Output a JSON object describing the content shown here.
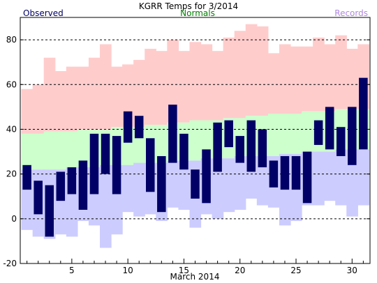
{
  "chart_data": {
    "type": "bar",
    "title": "KGRR Temps for 3/2014",
    "xlabel": "March 2014",
    "ylabel": "",
    "ylim": [
      -20,
      90
    ],
    "yticks": [
      -20,
      0,
      20,
      40,
      60,
      80
    ],
    "xticks": [
      5,
      10,
      15,
      20,
      25,
      30
    ],
    "days": [
      1,
      2,
      3,
      4,
      5,
      6,
      7,
      8,
      9,
      10,
      11,
      12,
      13,
      14,
      15,
      16,
      17,
      18,
      19,
      20,
      21,
      22,
      23,
      24,
      25,
      26,
      27,
      28,
      29,
      30,
      31
    ],
    "legend": {
      "observed": "Observed",
      "normals": "Normals",
      "records": "Records"
    },
    "colors": {
      "observed": "#000066",
      "normals_fill": "#ccffcc",
      "records_high_fill": "#ffcccc",
      "records_low_fill": "#ccccff",
      "observed_label": "#000066",
      "normals_label": "#008000",
      "records_label": "#b088e0"
    },
    "series": [
      {
        "name": "Record High",
        "values": [
          58,
          60,
          72,
          66,
          68,
          68,
          72,
          78,
          68,
          69,
          71,
          76,
          75,
          80,
          75,
          79,
          78,
          75,
          81,
          84,
          87,
          86,
          74,
          78,
          77,
          77,
          81,
          78,
          82,
          76,
          78
        ]
      },
      {
        "name": "Normal High",
        "values": [
          38,
          38,
          39,
          39,
          39,
          40,
          40,
          40,
          41,
          41,
          41,
          42,
          42,
          43,
          43,
          44,
          44,
          44,
          45,
          45,
          46,
          46,
          47,
          47,
          47,
          48,
          48,
          48,
          49,
          49,
          49
        ]
      },
      {
        "name": "Normal Low",
        "values": [
          22,
          22,
          22,
          22,
          23,
          23,
          23,
          24,
          24,
          24,
          25,
          25,
          25,
          26,
          26,
          26,
          27,
          27,
          27,
          28,
          28,
          28,
          28,
          29,
          29,
          30,
          30,
          30,
          31,
          31,
          31
        ]
      },
      {
        "name": "Record Low",
        "values": [
          -5,
          -8,
          -9,
          -7,
          -8,
          -1,
          -3,
          -13,
          -7,
          3,
          1,
          2,
          -1,
          5,
          4,
          -4,
          2,
          0,
          3,
          4,
          9,
          6,
          5,
          -3,
          -1,
          6,
          6,
          8,
          6,
          1,
          6
        ]
      },
      {
        "name": "Observed High",
        "values": [
          24,
          17,
          15,
          21,
          23,
          26,
          38,
          38,
          37,
          48,
          46,
          36,
          28,
          51,
          38,
          22,
          31,
          43,
          44,
          37,
          44,
          40,
          26,
          28,
          28,
          30,
          44,
          50,
          41,
          50,
          63
        ]
      },
      {
        "name": "Observed Low",
        "values": [
          13,
          2,
          -8,
          8,
          11,
          4,
          11,
          20,
          11,
          34,
          36,
          12,
          3,
          25,
          22,
          9,
          7,
          21,
          32,
          25,
          21,
          23,
          14,
          13,
          13,
          7,
          33,
          31,
          28,
          24,
          31
        ]
      }
    ]
  }
}
